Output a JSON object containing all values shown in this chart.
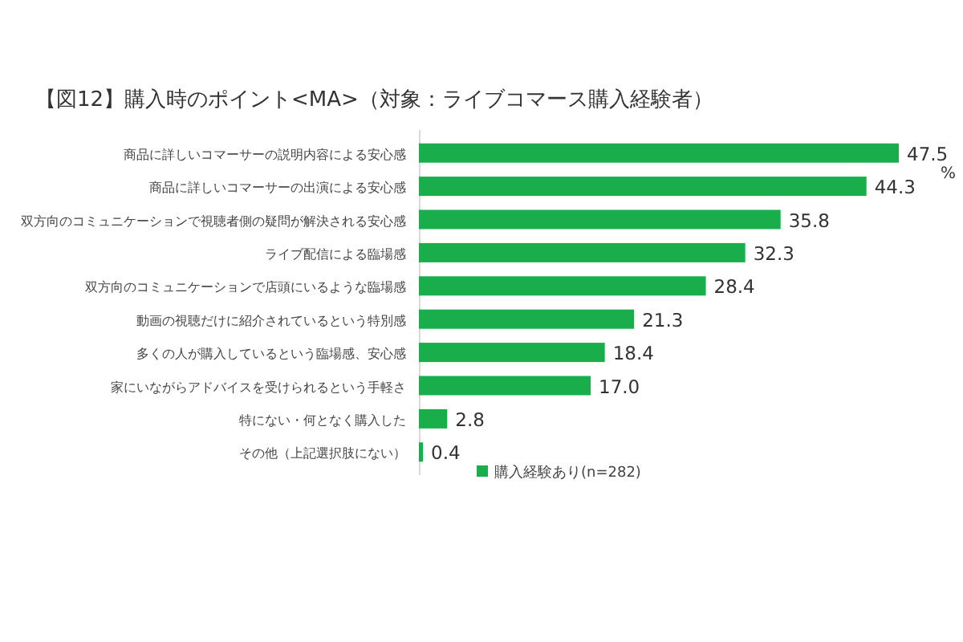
{
  "chart_data": {
    "type": "bar",
    "orientation": "horizontal",
    "title": "【図12】購入時のポイント<MA>（対象：ライブコマース購入経験者）",
    "categories": [
      "商品に詳しいコマーサーの説明内容による安心感",
      "商品に詳しいコマーサーの出演による安心感",
      "双方向のコミュニケーションで視聴者側の疑問が解決される安心感",
      "ライブ配信による臨場感",
      "双方向のコミュニケーションで店頭にいるような臨場感",
      "動画の視聴だけに紹介されているという特別感",
      "多くの人が購入しているという臨場感、安心感",
      "家にいながらアドバイスを受けられるという手軽さ",
      "特にない・何となく購入した",
      "その他（上記選択肢にない）"
    ],
    "series": [
      {
        "name": "購入経験あり(n=282)",
        "color": "#1aad4b",
        "values": [
          47.5,
          44.3,
          35.8,
          32.3,
          28.4,
          21.3,
          18.4,
          17.0,
          2.8,
          0.4
        ],
        "value_labels": [
          "47.5",
          "44.3",
          "35.8",
          "32.3",
          "28.4",
          "21.3",
          "18.4",
          "17.0",
          "2.8",
          "0.4"
        ]
      }
    ],
    "legend": "bottom",
    "annotations": [
      "%"
    ]
  }
}
